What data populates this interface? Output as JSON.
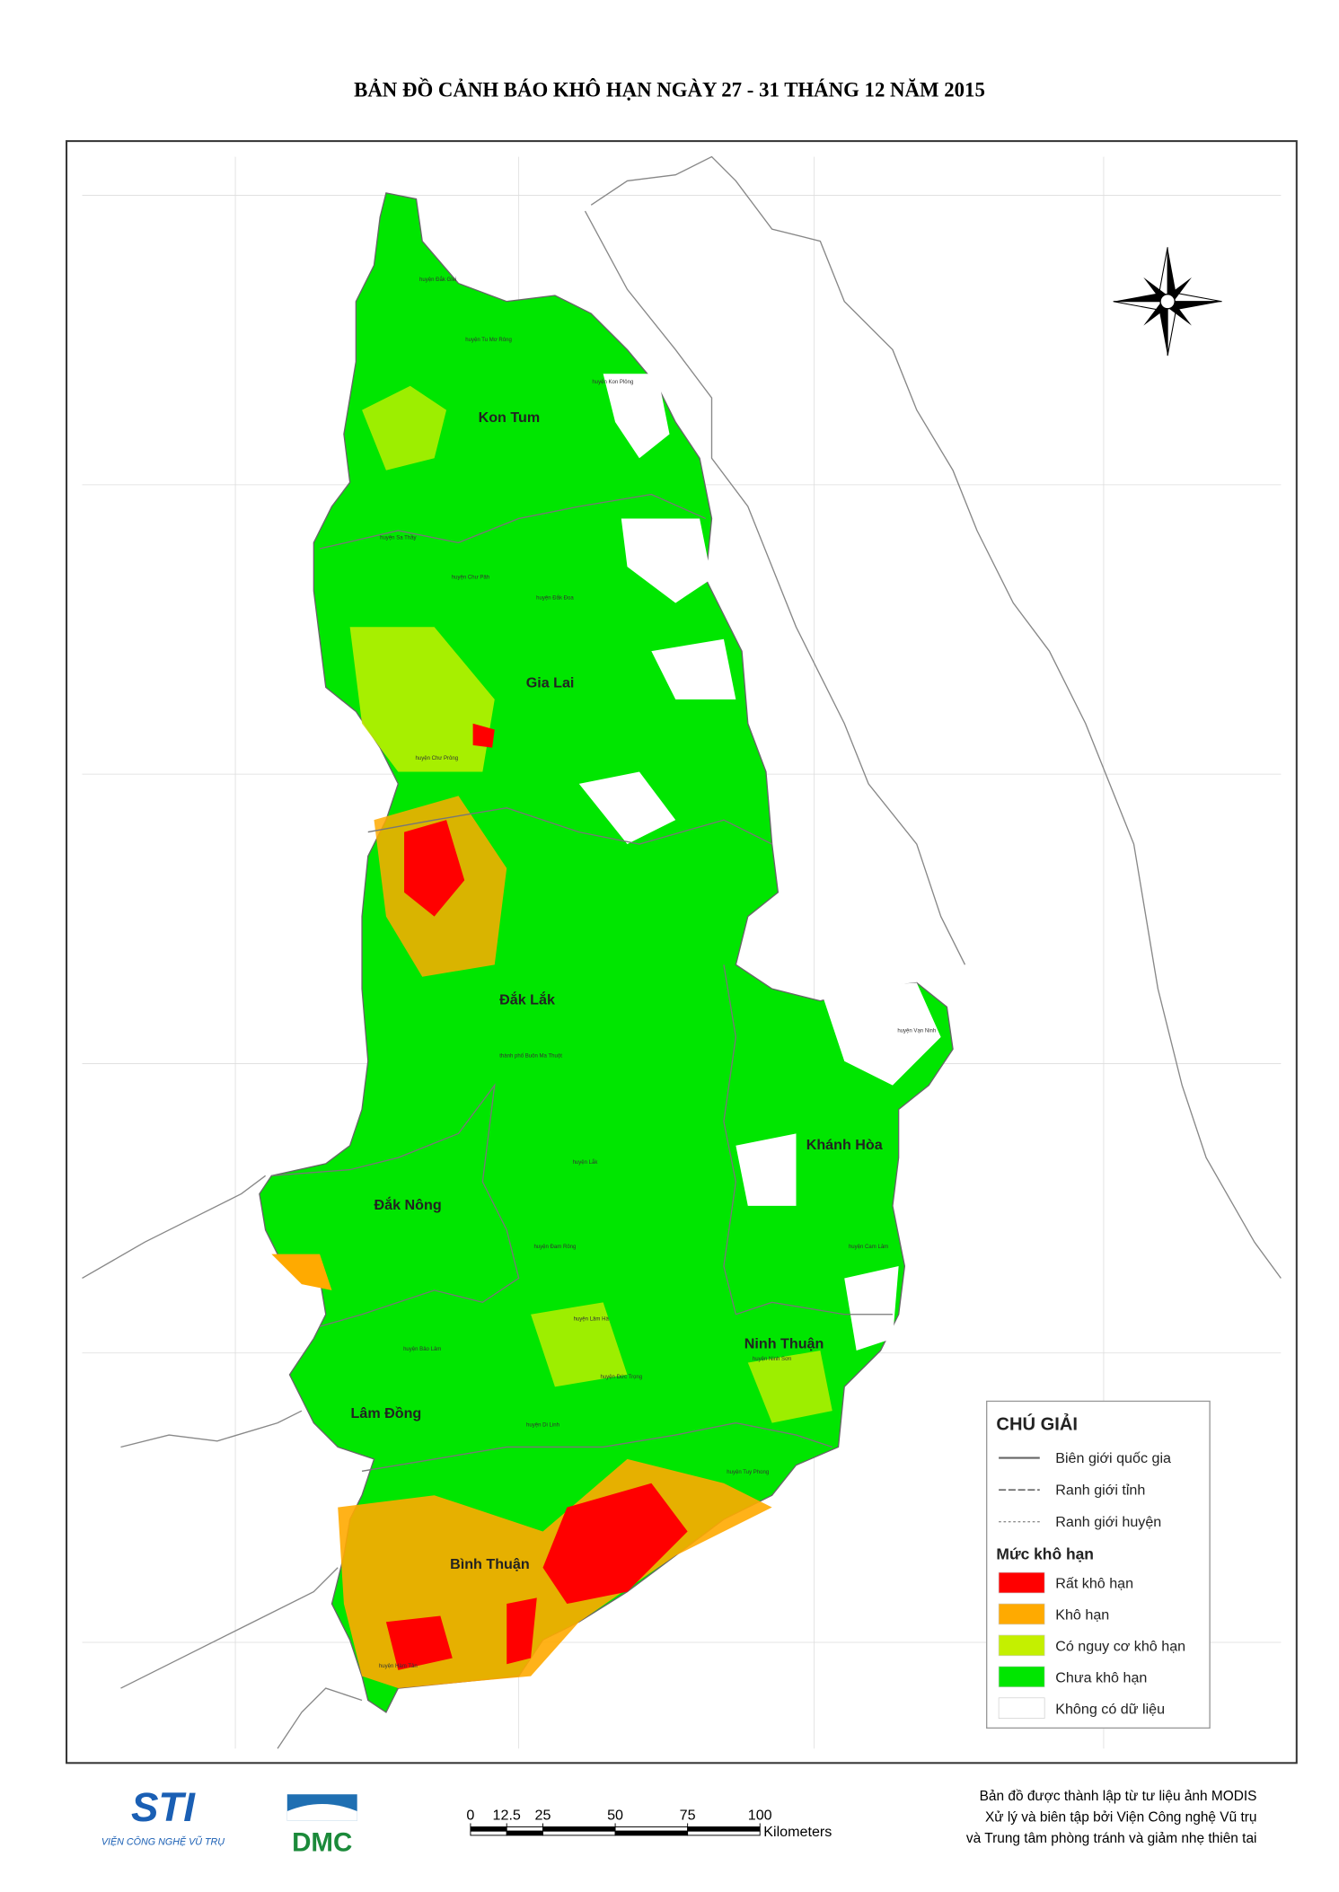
{
  "title": "BẢN ĐỒ CẢNH BÁO KHÔ HẠN NGÀY 27 - 31 THÁNG 12 NĂM 2015",
  "provinces": [
    "Kon Tum",
    "Gia Lai",
    "Đắk Lắk",
    "Khánh Hòa",
    "Đắk Nông",
    "Ninh Thuận",
    "Lâm Đồng",
    "Bình Thuận"
  ],
  "districts": [
    "huyện Đắk Glei",
    "huyện Tu Mơ Rông",
    "huyện Kon Plông",
    "huyện Sa Thầy",
    "huyện Chư Păh",
    "huyện Đắk Đoa",
    "huyện Chư Prông",
    "thành phố Buôn Ma Thuột",
    "huyện Lắk",
    "huyện Đam Rông",
    "huyện Lâm Hà",
    "huyện Đức Trọng",
    "huyện Di Linh",
    "huyện Bảo Lâm",
    "huyện Tuy Phong",
    "huyện Ninh Sơn",
    "huyện Hàm Tân",
    "huyện Cam Lâm",
    "huyện Vạn Ninh"
  ],
  "legend": {
    "title": "CHÚ GIẢI",
    "boundaries": [
      "Biên giới quốc gia",
      "Ranh giới tỉnh",
      "Ranh giới huyện"
    ],
    "drought_title": "Mức khô hạn",
    "classes": [
      {
        "label": "Rất khô hạn",
        "color": "#ff0000"
      },
      {
        "label": "Khô hạn",
        "color": "#ffaa00"
      },
      {
        "label": "Có nguy cơ khô hạn",
        "color": "#c4f000"
      },
      {
        "label": "Chưa khô hạn",
        "color": "#00e600"
      },
      {
        "label": "Không có dữ liệu",
        "color": "#ffffff"
      }
    ]
  },
  "scale_bar": {
    "ticks": [
      0,
      12.5,
      25,
      50,
      75,
      100
    ],
    "unit": "Kilometers"
  },
  "logos": {
    "sti": "STI",
    "sti_caption": "VIỆN CÔNG NGHỆ VŨ TRỤ",
    "dmc": "DMC"
  },
  "credits": [
    "Bản đồ được thành lập từ tư liệu ảnh MODIS",
    "Xử lý và biên tập bởi Viện Công nghệ Vũ trụ",
    "và Trung tâm phòng tránh và giảm nhẹ thiên tai"
  ]
}
